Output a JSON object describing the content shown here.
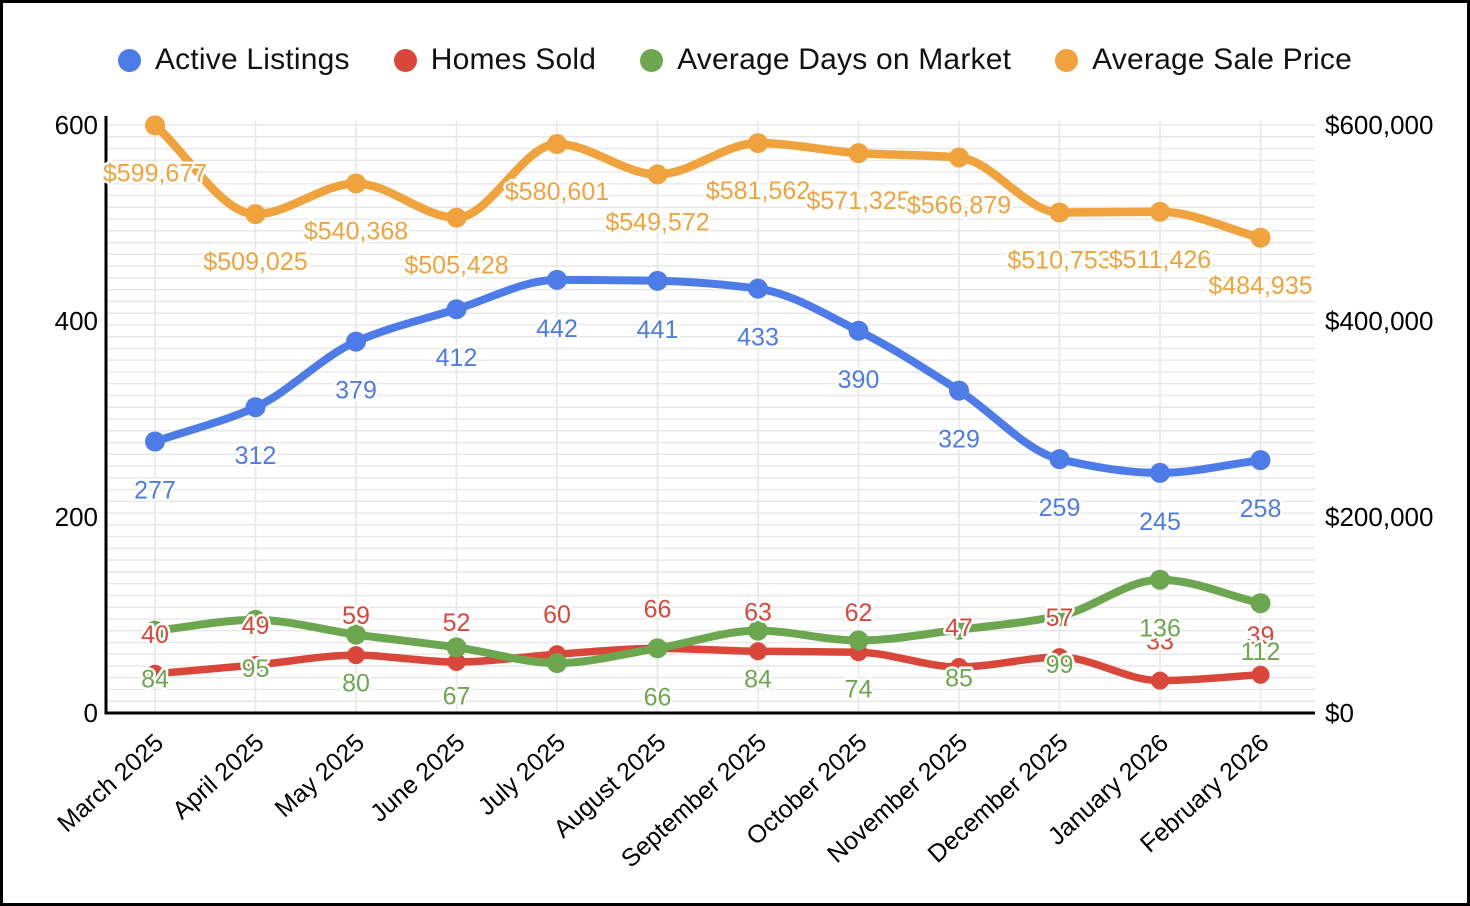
{
  "chart_data": {
    "type": "line",
    "title": "",
    "legend_position": "top",
    "grid": {
      "horizontal_minor_step": 12,
      "vertical_gridlines": true
    },
    "categories": [
      "March 2025",
      "April 2025",
      "May 2025",
      "June 2025",
      "July 2025",
      "August 2025",
      "September 2025",
      "October 2025",
      "November 2025",
      "December 2025",
      "January 2026",
      "February 2026"
    ],
    "left_axis": {
      "range": [
        0,
        600
      ],
      "ticks": [
        0,
        200,
        400,
        600
      ],
      "labels": [
        "0",
        "200",
        "400",
        "600"
      ]
    },
    "right_axis": {
      "range": [
        0,
        600000
      ],
      "ticks": [
        0,
        200000,
        400000,
        600000
      ],
      "labels": [
        "$0",
        "$200,000",
        "$400,000",
        "$600,000"
      ]
    },
    "series": [
      {
        "name": "Active Listings",
        "color": "#4D7CE8",
        "axis": "left",
        "values": [
          277,
          312,
          379,
          412,
          442,
          441,
          433,
          390,
          329,
          259,
          245,
          258
        ],
        "labels": [
          "277",
          "312",
          "379",
          "412",
          "442",
          "441",
          "433",
          "390",
          "329",
          "259",
          "245",
          "258"
        ]
      },
      {
        "name": "Homes Sold",
        "color": "#D9473B",
        "axis": "left",
        "values": [
          40,
          49,
          59,
          52,
          60,
          66,
          63,
          62,
          47,
          57,
          33,
          39
        ],
        "labels": [
          "40",
          "49",
          "59",
          "52",
          "60",
          "66",
          "63",
          "62",
          "47",
          "57",
          "33",
          "39"
        ]
      },
      {
        "name": "Average Days on Market",
        "color": "#6CA74F",
        "axis": "left",
        "values": [
          84,
          95,
          80,
          67,
          51,
          66,
          84,
          74,
          85,
          99,
          136,
          112
        ],
        "labels": [
          "84",
          "95",
          "80",
          "67",
          null,
          "66",
          "84",
          "74",
          "85",
          "99",
          "136",
          "112"
        ],
        "note_unlabeled_point": "July 2025 value estimated from line position; its label is hidden in the chart"
      },
      {
        "name": "Average Sale Price",
        "color": "#F0A33C",
        "axis": "right",
        "values": [
          599677,
          509025,
          540368,
          505428,
          580601,
          549572,
          581562,
          571325,
          566879,
          510753,
          511426,
          484935
        ],
        "labels": [
          "$599,677",
          "$509,025",
          "$540,368",
          "$505,428",
          "$580,601",
          "$549,572",
          "$581,562",
          "$571,325",
          "$566,879",
          "$510,753",
          "$511,426",
          "$484,935"
        ]
      }
    ]
  }
}
